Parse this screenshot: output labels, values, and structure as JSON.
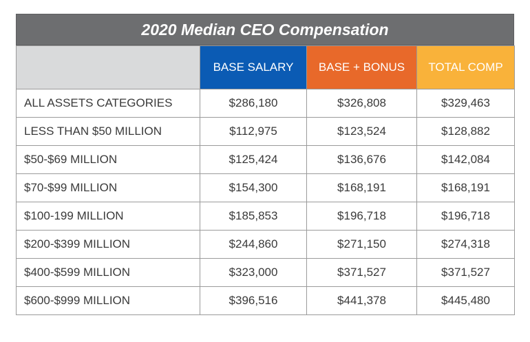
{
  "title": "2020 Median CEO Compensation",
  "columns": {
    "corner": "",
    "base_salary": "BASE SALARY",
    "base_bonus": "BASE + BONUS",
    "total_comp": "TOTAL COMP"
  },
  "colors": {
    "title_bar": "#6d6e70",
    "base_salary": "#0b5bb4",
    "base_bonus": "#e8692a",
    "total_comp": "#f9b23a",
    "corner": "#d9dadb"
  },
  "rows": [
    {
      "label": "ALL ASSETS CATEGORIES",
      "base": "$286,180",
      "bonus": "$326,808",
      "total": "$329,463"
    },
    {
      "label": "LESS THAN $50 MILLION",
      "base": "$112,975",
      "bonus": "$123,524",
      "total": "$128,882"
    },
    {
      "label": "$50-$69 MILLION",
      "base": "$125,424",
      "bonus": "$136,676",
      "total": "$142,084"
    },
    {
      "label": "$70-$99 MILLION",
      "base": "$154,300",
      "bonus": "$168,191",
      "total": "$168,191"
    },
    {
      "label": "$100-199 MILLION",
      "base": "$185,853",
      "bonus": "$196,718",
      "total": "$196,718"
    },
    {
      "label": "$200-$399 MILLION",
      "base": "$244,860",
      "bonus": "$271,150",
      "total": "$274,318"
    },
    {
      "label": "$400-$599 MILLION",
      "base": "$323,000",
      "bonus": "$371,527",
      "total": "$371,527"
    },
    {
      "label": "$600-$999 MILLION",
      "base": "$396,516",
      "bonus": "$441,378",
      "total": "$445,480"
    }
  ]
}
